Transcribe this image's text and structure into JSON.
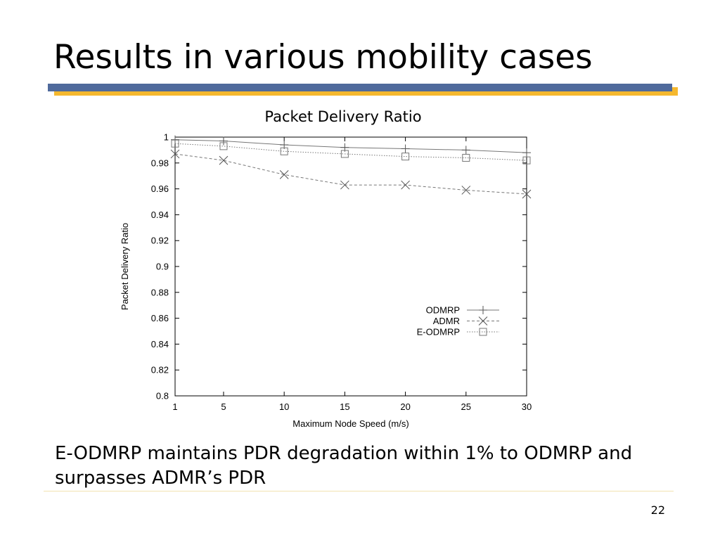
{
  "slide": {
    "title": "Results in various mobility cases",
    "caption": "E-ODMRP maintains PDR degradation within 1% to ODMRP and surpasses ADMR’s PDR",
    "page_number": "22",
    "colors": {
      "blue_bar": "#4f6a9c",
      "gold_bar": "#f5b82e"
    }
  },
  "chart_data": {
    "type": "line",
    "title": "Packet Delivery Ratio",
    "xlabel": "Maximum Node Speed (m/s)",
    "ylabel": "Packet Delivery Ratio",
    "x": [
      1,
      5,
      10,
      15,
      20,
      25,
      30
    ],
    "xlim": [
      1,
      30
    ],
    "ylim": [
      0.8,
      1
    ],
    "x_ticks": [
      "1",
      "5",
      "10",
      "15",
      "20",
      "25",
      "30"
    ],
    "y_ticks": [
      "0.8",
      "0.82",
      "0.84",
      "0.86",
      "0.88",
      "0.9",
      "0.92",
      "0.94",
      "0.96",
      "0.98",
      "1"
    ],
    "legend_position": "center-right",
    "grid": false,
    "series": [
      {
        "name": "ODMRP",
        "marker": "plus",
        "line": "solid",
        "values": [
          0.998,
          0.997,
          0.994,
          0.992,
          0.991,
          0.99,
          0.988
        ]
      },
      {
        "name": "ADMR",
        "marker": "cross",
        "line": "dashed",
        "values": [
          0.987,
          0.982,
          0.971,
          0.963,
          0.963,
          0.959,
          0.956
        ]
      },
      {
        "name": "E-ODMRP",
        "marker": "square",
        "line": "dotted",
        "values": [
          0.995,
          0.993,
          0.989,
          0.987,
          0.985,
          0.984,
          0.982
        ]
      }
    ]
  }
}
